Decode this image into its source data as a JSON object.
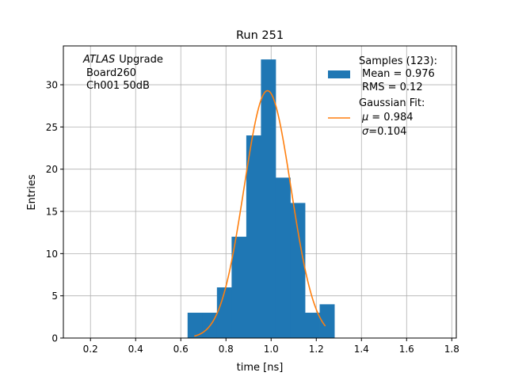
{
  "chart_data": {
    "type": "histogram",
    "title": "Run 251",
    "xlabel": "time [ns]",
    "ylabel": "Entries",
    "xlim": [
      0.08,
      1.82
    ],
    "ylim": [
      0,
      34.6
    ],
    "xticks": [
      0.2,
      0.4,
      0.6,
      0.8,
      1.0,
      1.2,
      1.4,
      1.6,
      1.8
    ],
    "xtick_labels": [
      "0.2",
      "0.4",
      "0.6",
      "0.8",
      "1.0",
      "1.2",
      "1.4",
      "1.6",
      "1.8"
    ],
    "yticks": [
      0,
      5,
      10,
      15,
      20,
      25,
      30
    ],
    "ytick_labels": [
      "0",
      "5",
      "10",
      "15",
      "20",
      "25",
      "30"
    ],
    "grid": true,
    "bins": {
      "edges": [
        0.63,
        0.695,
        0.76,
        0.825,
        0.89,
        0.955,
        1.02,
        1.085,
        1.15,
        1.215,
        1.28
      ],
      "counts": [
        3,
        3,
        6,
        12,
        24,
        33,
        19,
        16,
        3,
        4
      ],
      "color": "#1f77b4"
    },
    "fit": {
      "type": "gaussian",
      "mu": 0.984,
      "sigma": 0.104,
      "amplitude": 29.3,
      "x_range": [
        0.66,
        1.24
      ],
      "color": "#ff7f0e"
    },
    "annotation": {
      "lines": [
        "Upgrade",
        "Board260",
        "Ch001 50dB"
      ],
      "italic_prefix": "ATLAS"
    },
    "legend": {
      "position": "top-right",
      "entries": [
        {
          "kind": "patch",
          "color": "#1f77b4",
          "lines": [
            "Samples (123):",
            "Mean = 0.976",
            "RMS = 0.12"
          ]
        },
        {
          "kind": "line",
          "color": "#ff7f0e",
          "lines": [
            "Gaussian Fit:",
            "= 0.984",
            "=0.104"
          ],
          "symbols": [
            "μ",
            "σ"
          ]
        }
      ]
    }
  }
}
